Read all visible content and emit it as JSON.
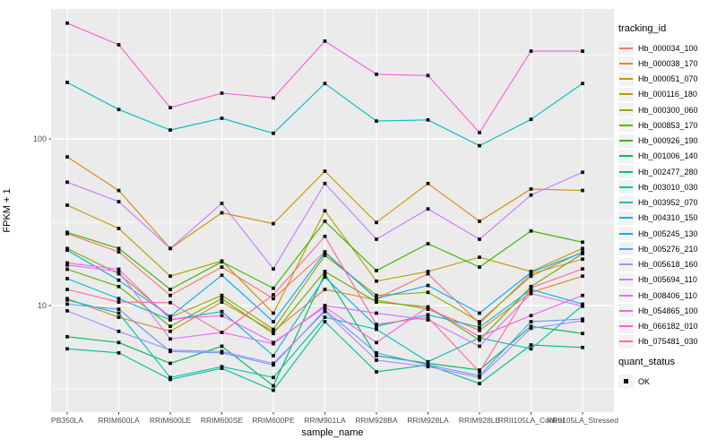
{
  "figure": {
    "ylabel": "FPKM + 1",
    "xlabel": "sample_name",
    "ytick_labels": [
      "100",
      "10"
    ]
  },
  "chart_data": {
    "type": "line",
    "title": "",
    "xlabel": "sample_name",
    "ylabel": "FPKM + 1",
    "yscale": "log10",
    "yticks": [
      10,
      100
    ],
    "minor_gridlines": [
      3.162,
      31.62,
      316.2
    ],
    "ylim": [
      2.3,
      600
    ],
    "grid": true,
    "legend_position": "right",
    "legend_title": "tracking_id",
    "point_marker": "black-filled-square",
    "panel_bg": "#ebebeb",
    "gridline_color": "#ffffff",
    "categories": [
      "PB350LA",
      "RRIM600LA",
      "RRIM600LE",
      "RRIM600SE",
      "RRIM600PE",
      "RRIM901LA",
      "RRIM928BA",
      "RRIM928LA",
      "RRIM928LE",
      "RRII105LA_Control",
      "RRII105LA_Stressed"
    ],
    "series": [
      {
        "name": "Hb_000034_100",
        "color": "#F8766D",
        "values": [
          27,
          21,
          11.5,
          17,
          11,
          21,
          11,
          15.5,
          7.8,
          15.5,
          19
        ]
      },
      {
        "name": "Hb_000038_170",
        "color": "#E88526",
        "values": [
          11,
          8.5,
          7.0,
          10.5,
          7.0,
          12.5,
          10.8,
          9.5,
          7.1,
          12,
          15
        ]
      },
      {
        "name": "Hb_000051_070",
        "color": "#D39200",
        "values": [
          78,
          49,
          22,
          36,
          31,
          64,
          31.5,
          54,
          32,
          50,
          49
        ]
      },
      {
        "name": "Hb_000116_180",
        "color": "#B79F00",
        "values": [
          40,
          29,
          15,
          18.5,
          9,
          37,
          14,
          16,
          19.5,
          16,
          22
        ]
      },
      {
        "name": "Hb_000300_060",
        "color": "#93AA00",
        "values": [
          22,
          15.5,
          8.5,
          11.5,
          7.2,
          20,
          11.5,
          12,
          8.0,
          15,
          21
        ]
      },
      {
        "name": "Hb_000853_170",
        "color": "#64B200",
        "values": [
          16.5,
          13,
          7.5,
          11,
          6.8,
          16,
          10.5,
          9.8,
          6.2,
          13,
          20.5
        ]
      },
      {
        "name": "Hb_000926_190",
        "color": "#39B600",
        "values": [
          27.5,
          22,
          12.5,
          18.3,
          12.7,
          32,
          16.2,
          23.5,
          17,
          28,
          24
        ]
      },
      {
        "name": "Hb_001006_140",
        "color": "#00BC59",
        "values": [
          6.5,
          6.0,
          4.5,
          5.7,
          3.3,
          15.5,
          5.0,
          4.5,
          4.1,
          7.5,
          6.8
        ]
      },
      {
        "name": "Hb_002477_280",
        "color": "#00C08B",
        "values": [
          5.5,
          5.2,
          3.6,
          4.2,
          3.1,
          8.0,
          4.0,
          4.4,
          3.4,
          5.8,
          5.6
        ]
      },
      {
        "name": "Hb_003010_030",
        "color": "#00C1B2",
        "values": [
          10.8,
          9.0,
          3.7,
          4.3,
          3.7,
          8.5,
          7.2,
          4.6,
          6.4,
          5.5,
          10
        ]
      },
      {
        "name": "Hb_003952_070",
        "color": "#00BFC4",
        "values": [
          218,
          150,
          113,
          133,
          108,
          215,
          128,
          130,
          91,
          131,
          215
        ]
      },
      {
        "name": "Hb_004310_150",
        "color": "#00B8E5",
        "values": [
          14.5,
          11,
          8.2,
          9.2,
          5.0,
          14.8,
          7.5,
          8.8,
          7.4,
          12.5,
          10.2
        ]
      },
      {
        "name": "Hb_005245_130",
        "color": "#00ACFC",
        "values": [
          21.5,
          14.2,
          8.6,
          15.2,
          8.0,
          20.8,
          11.0,
          13.2,
          9.0,
          15.8,
          20.8
        ]
      },
      {
        "name": "Hb_005276_210",
        "color": "#619CFF",
        "values": [
          10.2,
          9.5,
          5.3,
          5.2,
          4.4,
          9.4,
          5.2,
          4.4,
          3.8,
          8.0,
          8.3
        ]
      },
      {
        "name": "Hb_005618_160",
        "color": "#A58AFF",
        "values": [
          9.3,
          7.0,
          5.4,
          5.3,
          4.5,
          9.2,
          4.7,
          4.3,
          3.7,
          7.3,
          8.1
        ]
      },
      {
        "name": "Hb_005694_110",
        "color": "#C77CFF",
        "values": [
          55,
          42,
          22,
          41,
          16.6,
          54,
          25,
          38,
          25,
          46,
          63
        ]
      },
      {
        "name": "Hb_008406_110",
        "color": "#DF70F8",
        "values": [
          17.5,
          16,
          6.3,
          6.9,
          5.9,
          10.0,
          9.0,
          8.2,
          5.7,
          11.8,
          9.9
        ]
      },
      {
        "name": "Hb_054865_100",
        "color": "#F166E8",
        "values": [
          18,
          16.5,
          8.3,
          8.7,
          6.0,
          9.8,
          6.0,
          9.8,
          6.5,
          8.7,
          11.5
        ]
      },
      {
        "name": "Hb_066182_010",
        "color": "#FB61D7",
        "values": [
          495,
          367,
          154,
          188,
          176,
          386,
          244,
          240,
          109,
          336,
          336
        ]
      },
      {
        "name": "Hb_075481_030",
        "color": "#FF689E",
        "values": [
          12.5,
          10.5,
          10.4,
          6.9,
          11.6,
          26,
          7.7,
          8.5,
          4.0,
          12.8,
          16.6
        ]
      }
    ],
    "quant_status": {
      "title": "quant_status",
      "items": [
        {
          "label": "OK",
          "marker": "black-square"
        }
      ]
    }
  }
}
